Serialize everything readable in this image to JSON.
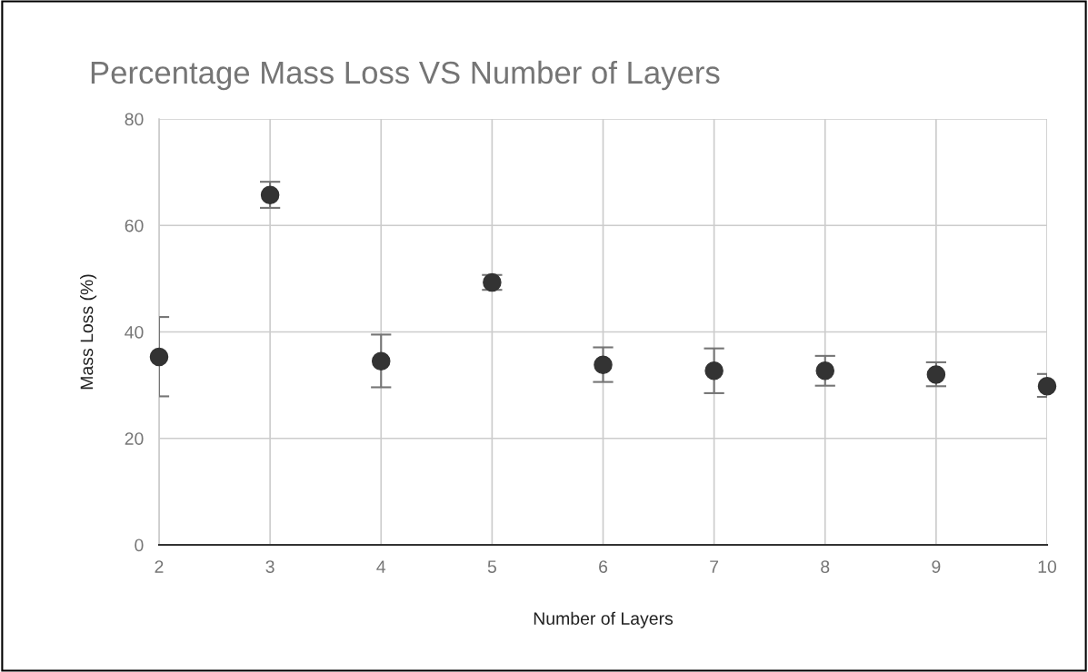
{
  "chart_data": {
    "type": "scatter",
    "title": "Percentage Mass Loss VS Number of Layers",
    "xlabel": "Number of Layers",
    "ylabel": "Mass Loss (%)",
    "x": [
      2,
      3,
      4,
      5,
      6,
      7,
      8,
      9,
      10
    ],
    "series": [
      {
        "color": "#333333",
        "values": [
          35.3,
          65.7,
          34.5,
          49.3,
          33.8,
          32.7,
          32.7,
          32.0,
          29.8
        ],
        "errors": [
          [
            27.9,
            42.8
          ],
          [
            63.3,
            68.2
          ],
          [
            29.6,
            39.5
          ],
          [
            47.9,
            50.7
          ],
          [
            30.6,
            37.1
          ],
          [
            28.5,
            36.9
          ],
          [
            29.9,
            35.5
          ],
          [
            29.8,
            34.3
          ],
          [
            27.8,
            32.1
          ]
        ]
      }
    ],
    "xlim": [
      2,
      10
    ],
    "xticks": [
      2,
      3,
      4,
      5,
      6,
      7,
      8,
      9,
      10
    ],
    "ylim": [
      0,
      80
    ],
    "yticks": [
      0,
      20,
      40,
      60,
      80
    ],
    "grid": true,
    "marker": "circle"
  }
}
